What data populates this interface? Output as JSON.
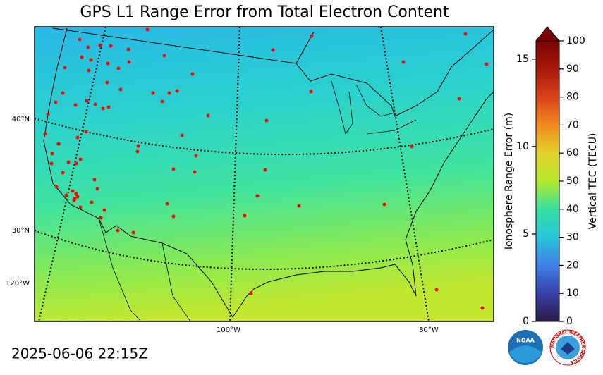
{
  "title": "GPS L1 Range Error from Total Electron Content",
  "timestamp": "2025-06-06 22:15Z",
  "map": {
    "lat_labels": [
      "40°N",
      "30°N",
      "120°W"
    ],
    "lon_labels": [
      "100°W",
      "80°W"
    ]
  },
  "colorbar": {
    "colors": [
      "#2b1c4a",
      "#3a3fa8",
      "#3f7fe8",
      "#27c4d8",
      "#34e0a0",
      "#b5e82a",
      "#e2d12a",
      "#f08a1e",
      "#d9421a",
      "#a81808",
      "#7a0404"
    ],
    "left_axis": {
      "label": "Ionosphere Range Error (m)",
      "lim": [
        0,
        16.04
      ],
      "ticks": [
        0,
        5,
        10,
        15
      ]
    },
    "right_axis": {
      "label": "Vertical TEC (TECU)",
      "lim": [
        0,
        100
      ],
      "ticks": [
        0,
        10,
        20,
        30,
        40,
        50,
        60,
        70,
        80,
        90,
        100
      ]
    }
  },
  "logos": {
    "noaa": "NOAA",
    "nws": "NATIONAL WEATHER SERVICE"
  }
}
